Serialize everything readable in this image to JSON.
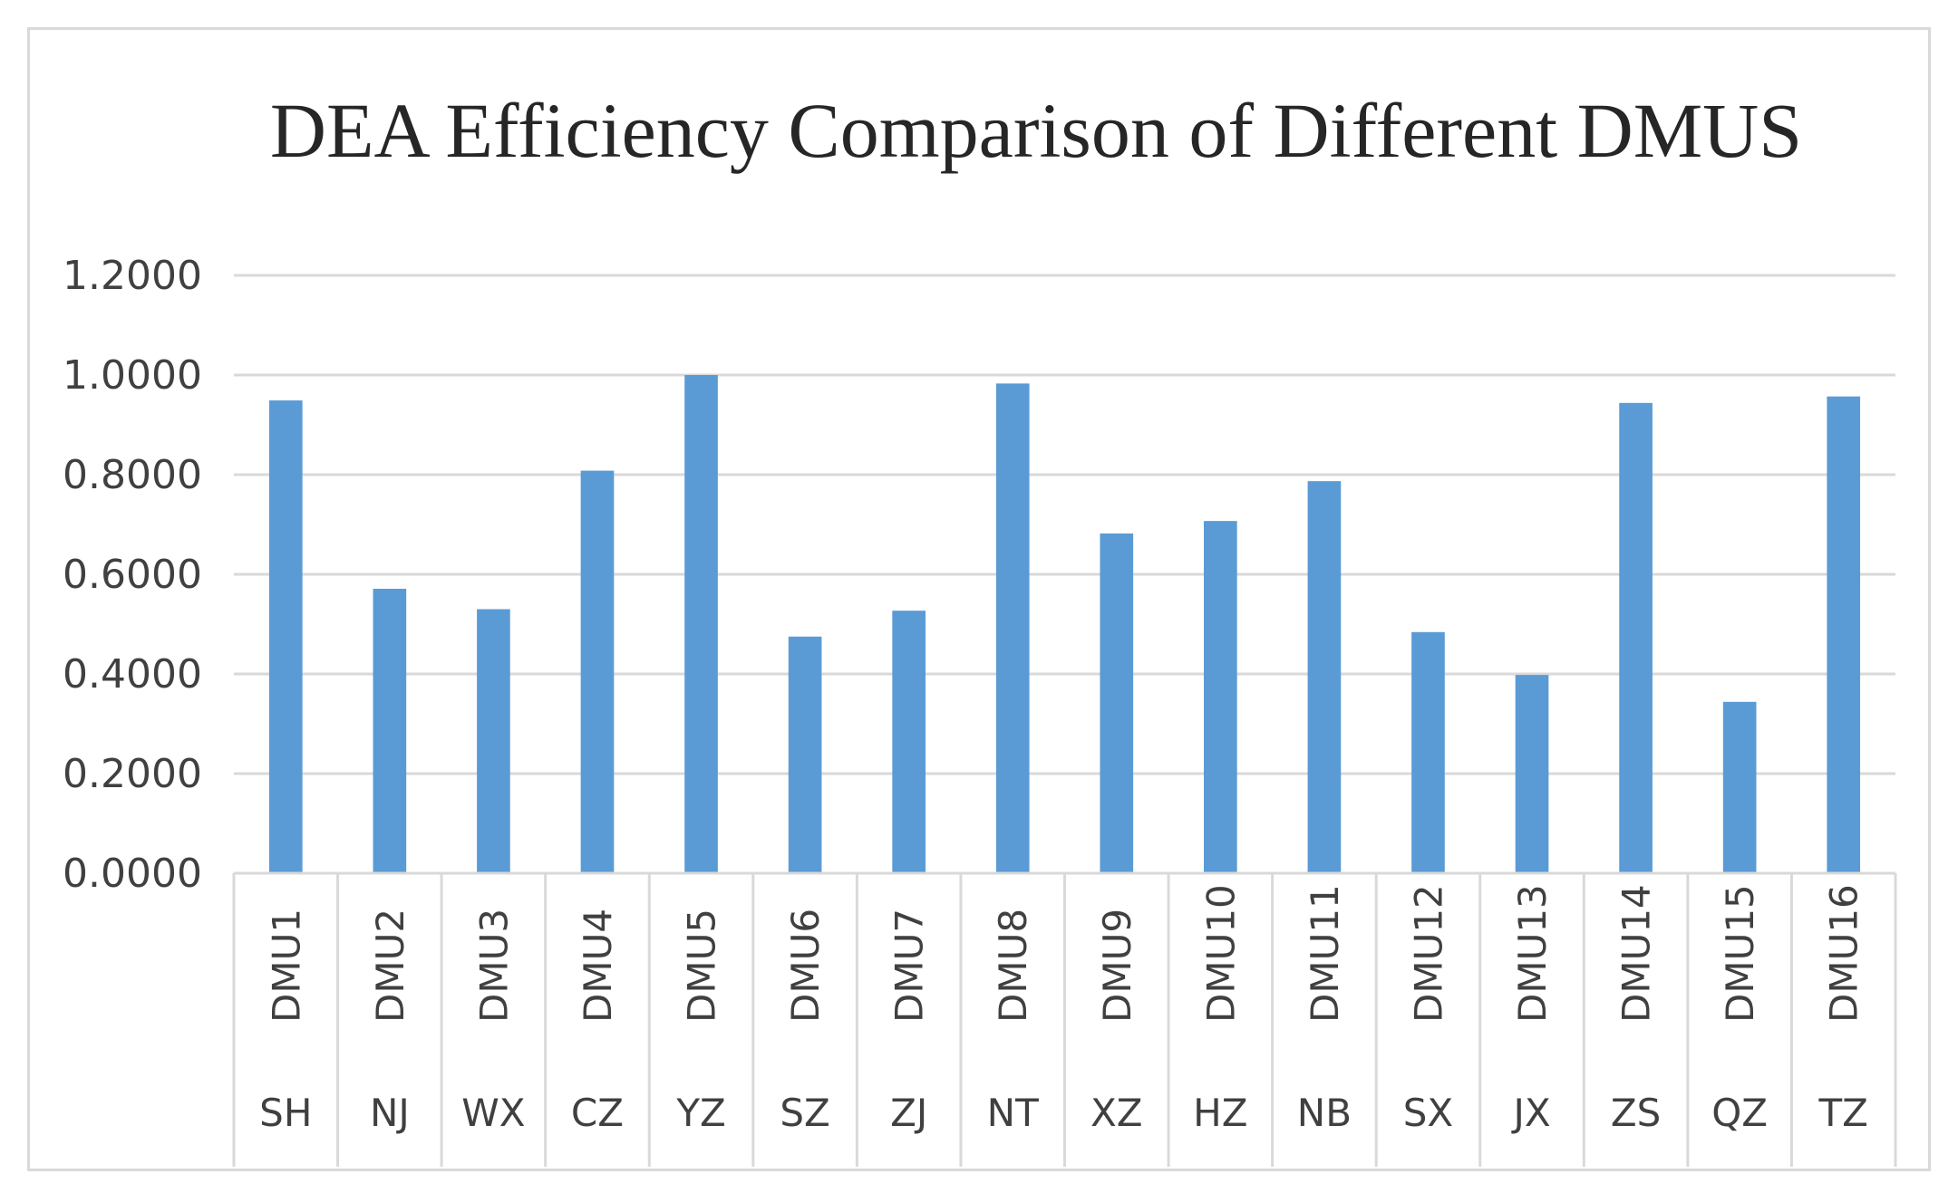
{
  "chart_data": {
    "type": "bar",
    "title": "DEA Efficiency Comparison of Different DMUS",
    "xlabel": "",
    "ylabel": "",
    "ylim": [
      0,
      1.2
    ],
    "yticks": [
      "0.0000",
      "0.2000",
      "0.4000",
      "0.6000",
      "0.8000",
      "1.0000",
      "1.2000"
    ],
    "ytick_values": [
      0,
      0.2,
      0.4,
      0.6,
      0.8,
      1.0,
      1.2
    ],
    "grid": true,
    "legend": "none",
    "categories": [
      {
        "dmu": "DMU1",
        "city": "SH"
      },
      {
        "dmu": "DMU2",
        "city": "NJ"
      },
      {
        "dmu": "DMU3",
        "city": "WX"
      },
      {
        "dmu": "DMU4",
        "city": "CZ"
      },
      {
        "dmu": "DMU5",
        "city": "YZ"
      },
      {
        "dmu": "DMU6",
        "city": "SZ"
      },
      {
        "dmu": "DMU7",
        "city": "ZJ"
      },
      {
        "dmu": "DMU8",
        "city": "NT"
      },
      {
        "dmu": "DMU9",
        "city": "XZ"
      },
      {
        "dmu": "DMU10",
        "city": "HZ"
      },
      {
        "dmu": "DMU11",
        "city": "NB"
      },
      {
        "dmu": "DMU12",
        "city": "SX"
      },
      {
        "dmu": "DMU13",
        "city": "JX"
      },
      {
        "dmu": "DMU14",
        "city": "ZS"
      },
      {
        "dmu": "DMU15",
        "city": "QZ"
      },
      {
        "dmu": "DMU16",
        "city": "TZ"
      }
    ],
    "values": [
      0.949,
      0.571,
      0.53,
      0.808,
      1.0,
      0.475,
      0.527,
      0.983,
      0.682,
      0.707,
      0.787,
      0.484,
      0.398,
      0.944,
      0.344,
      0.957
    ],
    "bar_color": "#5b9bd5"
  }
}
